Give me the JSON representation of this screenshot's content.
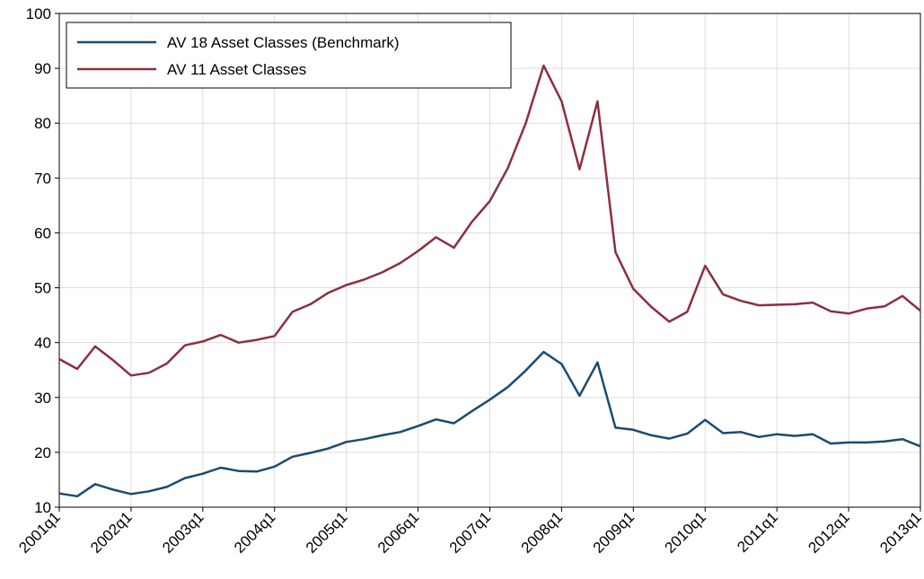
{
  "chart_data": {
    "type": "line",
    "categories": [
      "2001q1",
      null,
      null,
      null,
      "2002q1",
      null,
      null,
      null,
      "2003q1",
      null,
      null,
      null,
      "2004q1",
      null,
      null,
      null,
      "2005q1",
      null,
      null,
      null,
      "2006q1",
      null,
      null,
      null,
      "2007q1",
      null,
      null,
      null,
      "2008q1",
      null,
      null,
      null,
      "2009q1",
      null,
      null,
      null,
      "2010q1",
      null,
      null,
      null,
      "2011q1",
      null,
      null,
      null,
      "2012q1",
      null,
      null,
      null,
      "2013q1"
    ],
    "series": [
      {
        "name": "AV 18 Asset Classes (Benchmark)",
        "color": "#1c4a70",
        "values": [
          12.5,
          12,
          14.2,
          13.2,
          12.4,
          12.9,
          13.7,
          15.3,
          16.1,
          17.2,
          16.6,
          16.5,
          17.4,
          19.2,
          19.9,
          20.7,
          21.9,
          22.4,
          23.1,
          23.7,
          24.8,
          26,
          25.3,
          27.5,
          29.6,
          31.9,
          34.9,
          38.3,
          36.1,
          30.3,
          36.4,
          24.5,
          24.1,
          23.1,
          22.5,
          23.4,
          25.9,
          23.5,
          23.7,
          22.8,
          23.3,
          23,
          23.3,
          21.6,
          21.8,
          21.8,
          22,
          22.4,
          21.1
        ]
      },
      {
        "name": "AV 11 Asset Classes",
        "color": "#8c2f3d",
        "values": [
          37,
          35.2,
          39.3,
          36.8,
          34,
          34.5,
          36.2,
          39.5,
          40.2,
          41.4,
          40,
          40.5,
          41.2,
          45.6,
          47,
          49.1,
          50.5,
          51.5,
          52.8,
          54.5,
          56.7,
          59.2,
          57.3,
          62,
          65.8,
          71.8,
          80,
          90.5,
          84,
          71.6,
          84,
          56.5,
          49.8,
          46.5,
          43.8,
          45.6,
          54,
          48.8,
          47.6,
          46.8,
          46.9,
          47,
          47.3,
          45.7,
          45.3,
          46.2,
          46.6,
          48.5,
          45.8
        ]
      }
    ],
    "ylim": [
      10,
      100
    ],
    "yticks": [
      10,
      20,
      30,
      40,
      50,
      60,
      70,
      80,
      90,
      100
    ],
    "grid": true,
    "legend": "upper-left"
  }
}
